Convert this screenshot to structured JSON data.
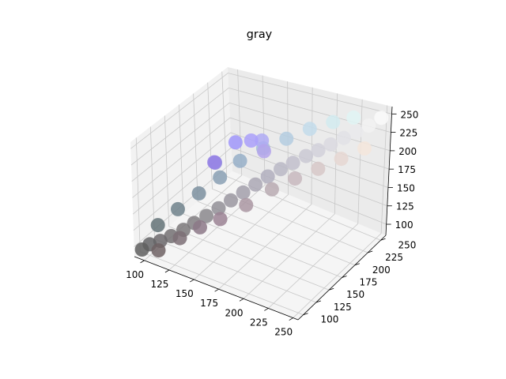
{
  "chart_data": {
    "type": "scatter",
    "projection": "3d",
    "title": "gray",
    "xlabel": "",
    "ylabel": "",
    "zlabel": "",
    "xlim": [
      90,
      255
    ],
    "ylim": [
      90,
      260
    ],
    "zlim": [
      85,
      260
    ],
    "x_ticks": [
      100,
      125,
      150,
      175,
      200,
      225,
      250
    ],
    "y_ticks": [
      100,
      125,
      150,
      175,
      200,
      225,
      250
    ],
    "z_ticks": [
      100,
      125,
      150,
      175,
      200,
      225,
      250
    ],
    "grid": true,
    "point_color": "each point colored by its own (x, y, z) as RGB",
    "colors": {
      "pane_left": "#f2f2f2",
      "pane_back": "#ebebeb",
      "pane_floor": "#f5f5f5",
      "grid": "#c8c8c8",
      "axis": "#000000"
    },
    "series": [
      {
        "points": [
          [
            95,
            95,
            95
          ],
          [
            100,
            100,
            102
          ],
          [
            108,
            105,
            108
          ],
          [
            115,
            112,
            114
          ],
          [
            123,
            120,
            122
          ],
          [
            130,
            127,
            131
          ],
          [
            138,
            135,
            140
          ],
          [
            146,
            143,
            150
          ],
          [
            154,
            151,
            160
          ],
          [
            162,
            159,
            170
          ],
          [
            170,
            167,
            180
          ],
          [
            178,
            175,
            190
          ],
          [
            186,
            184,
            198
          ],
          [
            194,
            192,
            205
          ],
          [
            202,
            201,
            212
          ],
          [
            210,
            209,
            218
          ],
          [
            218,
            217,
            224
          ],
          [
            226,
            226,
            230
          ],
          [
            234,
            234,
            236
          ],
          [
            242,
            242,
            242
          ],
          [
            250,
            250,
            250
          ],
          [
            110,
            98,
            100
          ],
          [
            125,
            110,
            118
          ],
          [
            140,
            120,
            135
          ],
          [
            155,
            130,
            148
          ],
          [
            170,
            150,
            162
          ],
          [
            185,
            170,
            178
          ],
          [
            200,
            185,
            190
          ],
          [
            215,
            200,
            200
          ],
          [
            230,
            215,
            210
          ],
          [
            245,
            230,
            220
          ],
          [
            100,
            115,
            120
          ],
          [
            112,
            130,
            140
          ],
          [
            125,
            145,
            160
          ],
          [
            138,
            160,
            180
          ],
          [
            150,
            175,
            200
          ],
          [
            165,
            190,
            215
          ],
          [
            180,
            205,
            225
          ],
          [
            195,
            220,
            235
          ],
          [
            210,
            235,
            240
          ],
          [
            225,
            245,
            245
          ],
          [
            160,
            150,
            250
          ],
          [
            170,
            160,
            250
          ],
          [
            175,
            170,
            245
          ],
          [
            180,
            165,
            235
          ],
          [
            145,
            140,
            220
          ],
          [
            150,
            130,
            230
          ]
        ]
      }
    ]
  }
}
